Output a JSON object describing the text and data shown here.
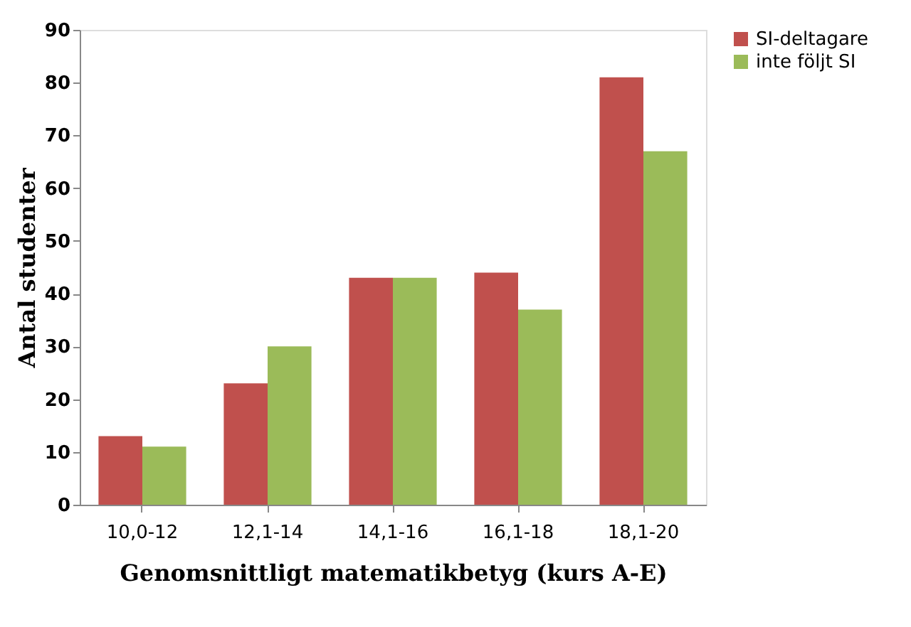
{
  "chart_data": {
    "type": "bar",
    "xlabel": "Genomsnittligt matematikbetyg (kurs A-E)",
    "ylabel": "Antal studenter",
    "categories": [
      "10,0-12",
      "12,1-14",
      "14,1-16",
      "16,1-18",
      "18,1-20"
    ],
    "series": [
      {
        "name": "SI-deltagare",
        "color": "#c0504d",
        "values": [
          13,
          23,
          43,
          44,
          81
        ]
      },
      {
        "name": "inte följt SI",
        "color": "#9bbb59",
        "values": [
          11,
          30,
          43,
          37,
          67
        ]
      }
    ],
    "ylim": [
      0,
      90
    ],
    "yticks": [
      0,
      10,
      20,
      30,
      40,
      50,
      60,
      70,
      80,
      90
    ],
    "grid": false,
    "legend": "right"
  }
}
